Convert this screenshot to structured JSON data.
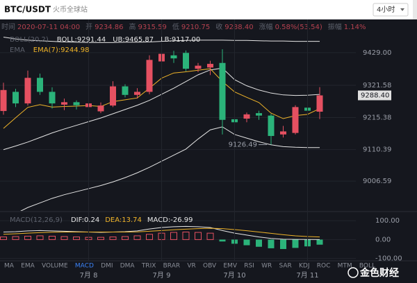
{
  "header": {
    "pair": "BTC/USDT",
    "exchange": "火币全球站",
    "interval": "4小时"
  },
  "info_line": [
    {
      "label": "时间",
      "value": "2020-07-11 04:00"
    },
    {
      "label": "开",
      "value": "9234.86"
    },
    {
      "label": "高",
      "value": "9315.59"
    },
    {
      "label": "低",
      "value": "9210.75"
    },
    {
      "label": "收",
      "value": "9288.40"
    },
    {
      "label": "涨幅",
      "value": "0.58%(53.54)"
    },
    {
      "label": "振幅",
      "value": "1.14%"
    }
  ],
  "chart_data": [
    {
      "type": "candlestick",
      "categories": [
        null,
        null,
        null,
        null,
        null,
        null,
        null,
        "7月 8",
        null,
        null,
        null,
        null,
        null,
        "7月 9",
        null,
        null,
        null,
        null,
        null,
        "7月 10",
        null,
        null,
        null,
        null,
        null,
        "7月 11",
        null
      ],
      "open": [
        9237,
        9300,
        9262,
        9346,
        9300,
        9258,
        9266,
        9250,
        9236,
        9255,
        9318,
        9290,
        9300,
        9400,
        9420,
        9428,
        9376,
        9380,
        9395,
        9210,
        9212,
        9230,
        9222,
        9160,
        9165,
        9248,
        9234.86
      ],
      "high": [
        9330,
        9310,
        9370,
        9360,
        9315,
        9278,
        9272,
        9275,
        9265,
        9335,
        9325,
        9312,
        9420,
        9450,
        9435,
        9436,
        9395,
        9402,
        9440,
        9222,
        9232,
        9238,
        9228,
        9188,
        9256,
        9252,
        9315.59
      ],
      "low": [
        9225,
        9250,
        9255,
        9290,
        9245,
        9240,
        9242,
        9238,
        9230,
        9250,
        9282,
        9278,
        9292,
        9385,
        9395,
        9368,
        9365,
        9355,
        9160,
        9185,
        9200,
        9208,
        9126.49,
        9150,
        9160,
        9226,
        9210.75
      ],
      "close": [
        9306,
        9262,
        9346,
        9300,
        9262,
        9266,
        9256,
        9262,
        9255,
        9318,
        9290,
        9300,
        9405,
        9425,
        9410,
        9376,
        9386,
        9392,
        9208,
        9200,
        9226,
        9222,
        9155,
        9170,
        9250,
        9238,
        9288.4
      ],
      "up_color": "#e55061",
      "down_color": "#2bb37a",
      "ylim": [
        8918,
        9497
      ],
      "yticks": [
        {
          "value": 9429,
          "label": "9429.00"
        },
        {
          "value": 9321.58,
          "label": "9321.58"
        },
        {
          "value": 9215.38,
          "label": "9215.38"
        },
        {
          "value": 9110.39,
          "label": "9110.39"
        },
        {
          "value": 9006.59,
          "label": "9006.59"
        }
      ],
      "grid": true,
      "last_price": {
        "value": 9288.4,
        "label": "9288.40"
      },
      "annotations": [
        {
          "value": 9126.49,
          "label": "9126.49"
        }
      ],
      "indicators": [
        {
          "title": "BOLL(20,2)",
          "series": [
            {
              "name": "BOLL:9291.44",
              "color": "#e6e6e6",
              "values": [
                9110,
                9122,
                9135,
                9150,
                9165,
                9178,
                9190,
                9202,
                9214,
                9228,
                9242,
                9256,
                9272,
                9292,
                9312,
                9334,
                9356,
                9372,
                9378,
                9340,
                9320,
                9306,
                9296,
                9290,
                9288,
                9289,
                9291.44
              ]
            },
            {
              "name": "UB:9465.87",
              "color": "#e6e6e6",
              "values": [
                9480,
                9474,
                9470,
                9468,
                9466,
                9464,
                9463,
                9462,
                9462,
                9462,
                9463,
                9463,
                9464,
                9466,
                9468,
                9469,
                9470,
                9470,
                9470,
                9469,
                9469,
                9468,
                9467,
                9467,
                9466,
                9466,
                9465.87
              ]
            },
            {
              "name": "LB:9117.00",
              "color": "#e6e6e6",
              "values": [
                8880,
                8900,
                8920,
                8935,
                8950,
                8962,
                8972,
                8982,
                8992,
                9004,
                9018,
                9034,
                9052,
                9072,
                9092,
                9112,
                9145,
                9175,
                9185,
                9160,
                9148,
                9136,
                9126,
                9120,
                9118,
                9117,
                9117
              ]
            }
          ]
        },
        {
          "title": "EMA",
          "series": [
            {
              "name": "EMA(7):9244.98",
              "color": "#f0b429",
              "values": [
                9180,
                9215,
                9249,
                9258,
                9250,
                9252,
                9253,
                9255,
                9252,
                9268,
                9274,
                9280,
                9312,
                9345,
                9362,
                9366,
                9371,
                9376,
                9334,
                9300,
                9282,
                9265,
                9230,
                9212,
                9222,
                9226,
                9244.98
              ]
            }
          ]
        }
      ]
    },
    {
      "type": "macd",
      "title": "MACD(12,26,9)",
      "series": [
        {
          "name": "DIF:0.24",
          "color": "#e6e6e6",
          "values": [
            40,
            42,
            46,
            48,
            46,
            44,
            42,
            40,
            38,
            40,
            42,
            46,
            56,
            64,
            68,
            70,
            68,
            64,
            48,
            34,
            24,
            14,
            6,
            2,
            1,
            0.5,
            0.24
          ]
        },
        {
          "name": "DEA:13.74",
          "color": "#f0b429",
          "values": [
            28,
            31,
            34,
            37,
            39,
            40,
            40,
            40,
            40,
            40,
            40,
            41,
            44,
            48,
            52,
            55,
            58,
            60,
            58,
            53,
            47,
            40,
            33,
            26,
            20,
            16,
            13.74
          ]
        }
      ],
      "histogram": {
        "name": "MACD:-26.99",
        "up_color": "#e55061",
        "down_color": "#2bb37a",
        "values": [
          14,
          16,
          18,
          20,
          18,
          16,
          14,
          12,
          12,
          14,
          16,
          20,
          28,
          34,
          38,
          40,
          38,
          34,
          -10,
          -22,
          -30,
          -38,
          -46,
          -50,
          -44,
          -36,
          -26.99
        ]
      },
      "ylim": [
        -105,
        130
      ],
      "yticks": [
        {
          "value": 100,
          "label": "100.00"
        },
        {
          "value": 0,
          "label": "0.00"
        },
        {
          "value": -100,
          "label": "-100.00"
        }
      ],
      "grid": true
    }
  ],
  "indicator_tabs": [
    "MA",
    "EMA",
    "VOLUME",
    "MACD",
    "DMI",
    "DMA",
    "TRIX",
    "BRAR",
    "VR",
    "OBV",
    "EMV",
    "RSI",
    "WR",
    "SAR",
    "KDJ",
    "ROC",
    "MTM",
    "BOLL"
  ],
  "active_tab": "MACD",
  "watermark": "金色财经"
}
